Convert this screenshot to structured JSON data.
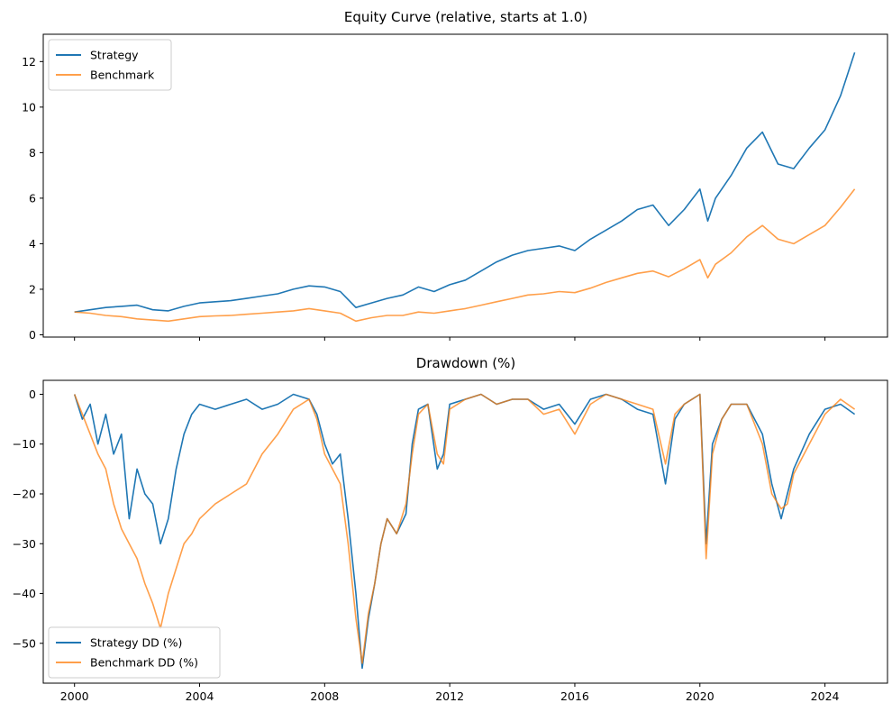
{
  "chart_data": [
    {
      "type": "line",
      "title": "Equity Curve (relative, starts at 1.0)",
      "xlabel": "",
      "ylabel": "",
      "xlim": [
        1999.0,
        2026.0
      ],
      "ylim": [
        -0.1,
        13.2
      ],
      "x_ticks": [
        2000,
        2004,
        2008,
        2012,
        2016,
        2020,
        2024
      ],
      "x_tick_labels": [
        "",
        "",
        "",
        "",
        "",
        "",
        ""
      ],
      "y_ticks": [
        0,
        2,
        4,
        6,
        8,
        10,
        12
      ],
      "y_tick_labels": [
        "0",
        "2",
        "4",
        "6",
        "8",
        "10",
        "12"
      ],
      "grid": false,
      "legend_position": "upper-left",
      "x": [
        2000.0,
        2000.5,
        2001.0,
        2001.5,
        2002.0,
        2002.5,
        2003.0,
        2003.5,
        2004.0,
        2004.5,
        2005.0,
        2005.5,
        2006.0,
        2006.5,
        2007.0,
        2007.5,
        2008.0,
        2008.5,
        2009.0,
        2009.5,
        2010.0,
        2010.5,
        2011.0,
        2011.5,
        2012.0,
        2012.5,
        2013.0,
        2013.5,
        2014.0,
        2014.5,
        2015.0,
        2015.5,
        2016.0,
        2016.5,
        2017.0,
        2017.5,
        2018.0,
        2018.5,
        2019.0,
        2019.5,
        2020.0,
        2020.25,
        2020.5,
        2021.0,
        2021.5,
        2022.0,
        2022.5,
        2023.0,
        2023.5,
        2024.0,
        2024.5,
        2024.95
      ],
      "series": [
        {
          "name": "Strategy",
          "color": "#1f77b4",
          "values": [
            1.0,
            1.1,
            1.2,
            1.25,
            1.3,
            1.1,
            1.05,
            1.25,
            1.4,
            1.45,
            1.5,
            1.6,
            1.7,
            1.8,
            2.0,
            2.15,
            2.1,
            1.9,
            1.2,
            1.4,
            1.6,
            1.75,
            2.1,
            1.9,
            2.2,
            2.4,
            2.8,
            3.2,
            3.5,
            3.7,
            3.8,
            3.9,
            3.7,
            4.2,
            4.6,
            5.0,
            5.5,
            5.7,
            4.8,
            5.5,
            6.4,
            5.0,
            6.0,
            7.0,
            8.2,
            8.9,
            7.5,
            7.3,
            8.2,
            9.0,
            10.5,
            12.4
          ]
        },
        {
          "name": "Benchmark",
          "color": "#ff7f0e",
          "values": [
            1.0,
            0.95,
            0.85,
            0.8,
            0.7,
            0.65,
            0.6,
            0.7,
            0.8,
            0.83,
            0.85,
            0.9,
            0.95,
            1.0,
            1.05,
            1.15,
            1.05,
            0.95,
            0.6,
            0.75,
            0.85,
            0.85,
            1.0,
            0.95,
            1.05,
            1.15,
            1.3,
            1.45,
            1.6,
            1.75,
            1.8,
            1.9,
            1.85,
            2.05,
            2.3,
            2.5,
            2.7,
            2.8,
            2.55,
            2.9,
            3.3,
            2.5,
            3.1,
            3.6,
            4.3,
            4.8,
            4.2,
            4.0,
            4.4,
            4.8,
            5.6,
            6.4
          ]
        }
      ]
    },
    {
      "type": "line",
      "title": "Drawdown (%)",
      "xlabel": "",
      "ylabel": "",
      "xlim": [
        1999.0,
        2026.0
      ],
      "ylim": [
        -58.0,
        2.8
      ],
      "x_ticks": [
        2000,
        2004,
        2008,
        2012,
        2016,
        2020,
        2024
      ],
      "x_tick_labels": [
        "2000",
        "2004",
        "2008",
        "2012",
        "2016",
        "2020",
        "2024"
      ],
      "y_ticks": [
        0,
        -10,
        -20,
        -30,
        -40,
        -50
      ],
      "y_tick_labels": [
        "0",
        "−10",
        "−20",
        "−30",
        "−40",
        "−50"
      ],
      "grid": false,
      "legend_position": "lower-left",
      "x": [
        2000.0,
        2000.25,
        2000.5,
        2000.75,
        2001.0,
        2001.25,
        2001.5,
        2001.75,
        2002.0,
        2002.25,
        2002.5,
        2002.75,
        2003.0,
        2003.25,
        2003.5,
        2003.75,
        2004.0,
        2004.5,
        2005.0,
        2005.5,
        2006.0,
        2006.5,
        2007.0,
        2007.5,
        2007.75,
        2008.0,
        2008.25,
        2008.5,
        2008.75,
        2009.0,
        2009.2,
        2009.4,
        2009.6,
        2009.8,
        2010.0,
        2010.3,
        2010.6,
        2010.8,
        2011.0,
        2011.3,
        2011.6,
        2011.8,
        2012.0,
        2012.5,
        2013.0,
        2013.5,
        2014.0,
        2014.5,
        2015.0,
        2015.5,
        2016.0,
        2016.5,
        2017.0,
        2017.5,
        2018.0,
        2018.5,
        2018.9,
        2019.2,
        2019.5,
        2020.0,
        2020.2,
        2020.4,
        2020.7,
        2021.0,
        2021.5,
        2022.0,
        2022.3,
        2022.6,
        2022.8,
        2023.0,
        2023.5,
        2024.0,
        2024.5,
        2024.95
      ],
      "series": [
        {
          "name": "Strategy DD (%)",
          "color": "#1f77b4",
          "values": [
            0,
            -5,
            -2,
            -10,
            -4,
            -12,
            -8,
            -25,
            -15,
            -20,
            -22,
            -30,
            -25,
            -15,
            -8,
            -4,
            -2,
            -3,
            -2,
            -1,
            -3,
            -2,
            0,
            -1,
            -4,
            -10,
            -14,
            -12,
            -25,
            -40,
            -55,
            -45,
            -38,
            -30,
            -25,
            -28,
            -24,
            -10,
            -3,
            -2,
            -15,
            -12,
            -2,
            -1,
            0,
            -2,
            -1,
            -1,
            -3,
            -2,
            -6,
            -1,
            0,
            -1,
            -3,
            -4,
            -18,
            -5,
            -2,
            0,
            -30,
            -10,
            -5,
            -2,
            -2,
            -8,
            -18,
            -25,
            -20,
            -15,
            -8,
            -3,
            -2,
            -4
          ]
        },
        {
          "name": "Benchmark DD (%)",
          "color": "#ff7f0e",
          "values": [
            0,
            -4,
            -8,
            -12,
            -15,
            -22,
            -27,
            -30,
            -33,
            -38,
            -42,
            -47,
            -40,
            -35,
            -30,
            -28,
            -25,
            -22,
            -20,
            -18,
            -12,
            -8,
            -3,
            -1,
            -5,
            -12,
            -15,
            -18,
            -30,
            -45,
            -54,
            -44,
            -38,
            -30,
            -25,
            -28,
            -22,
            -12,
            -4,
            -2,
            -12,
            -14,
            -3,
            -1,
            0,
            -2,
            -1,
            -1,
            -4,
            -3,
            -8,
            -2,
            0,
            -1,
            -2,
            -3,
            -14,
            -4,
            -2,
            0,
            -33,
            -12,
            -5,
            -2,
            -2,
            -10,
            -20,
            -23,
            -22,
            -16,
            -10,
            -4,
            -1,
            -3
          ]
        }
      ]
    }
  ]
}
